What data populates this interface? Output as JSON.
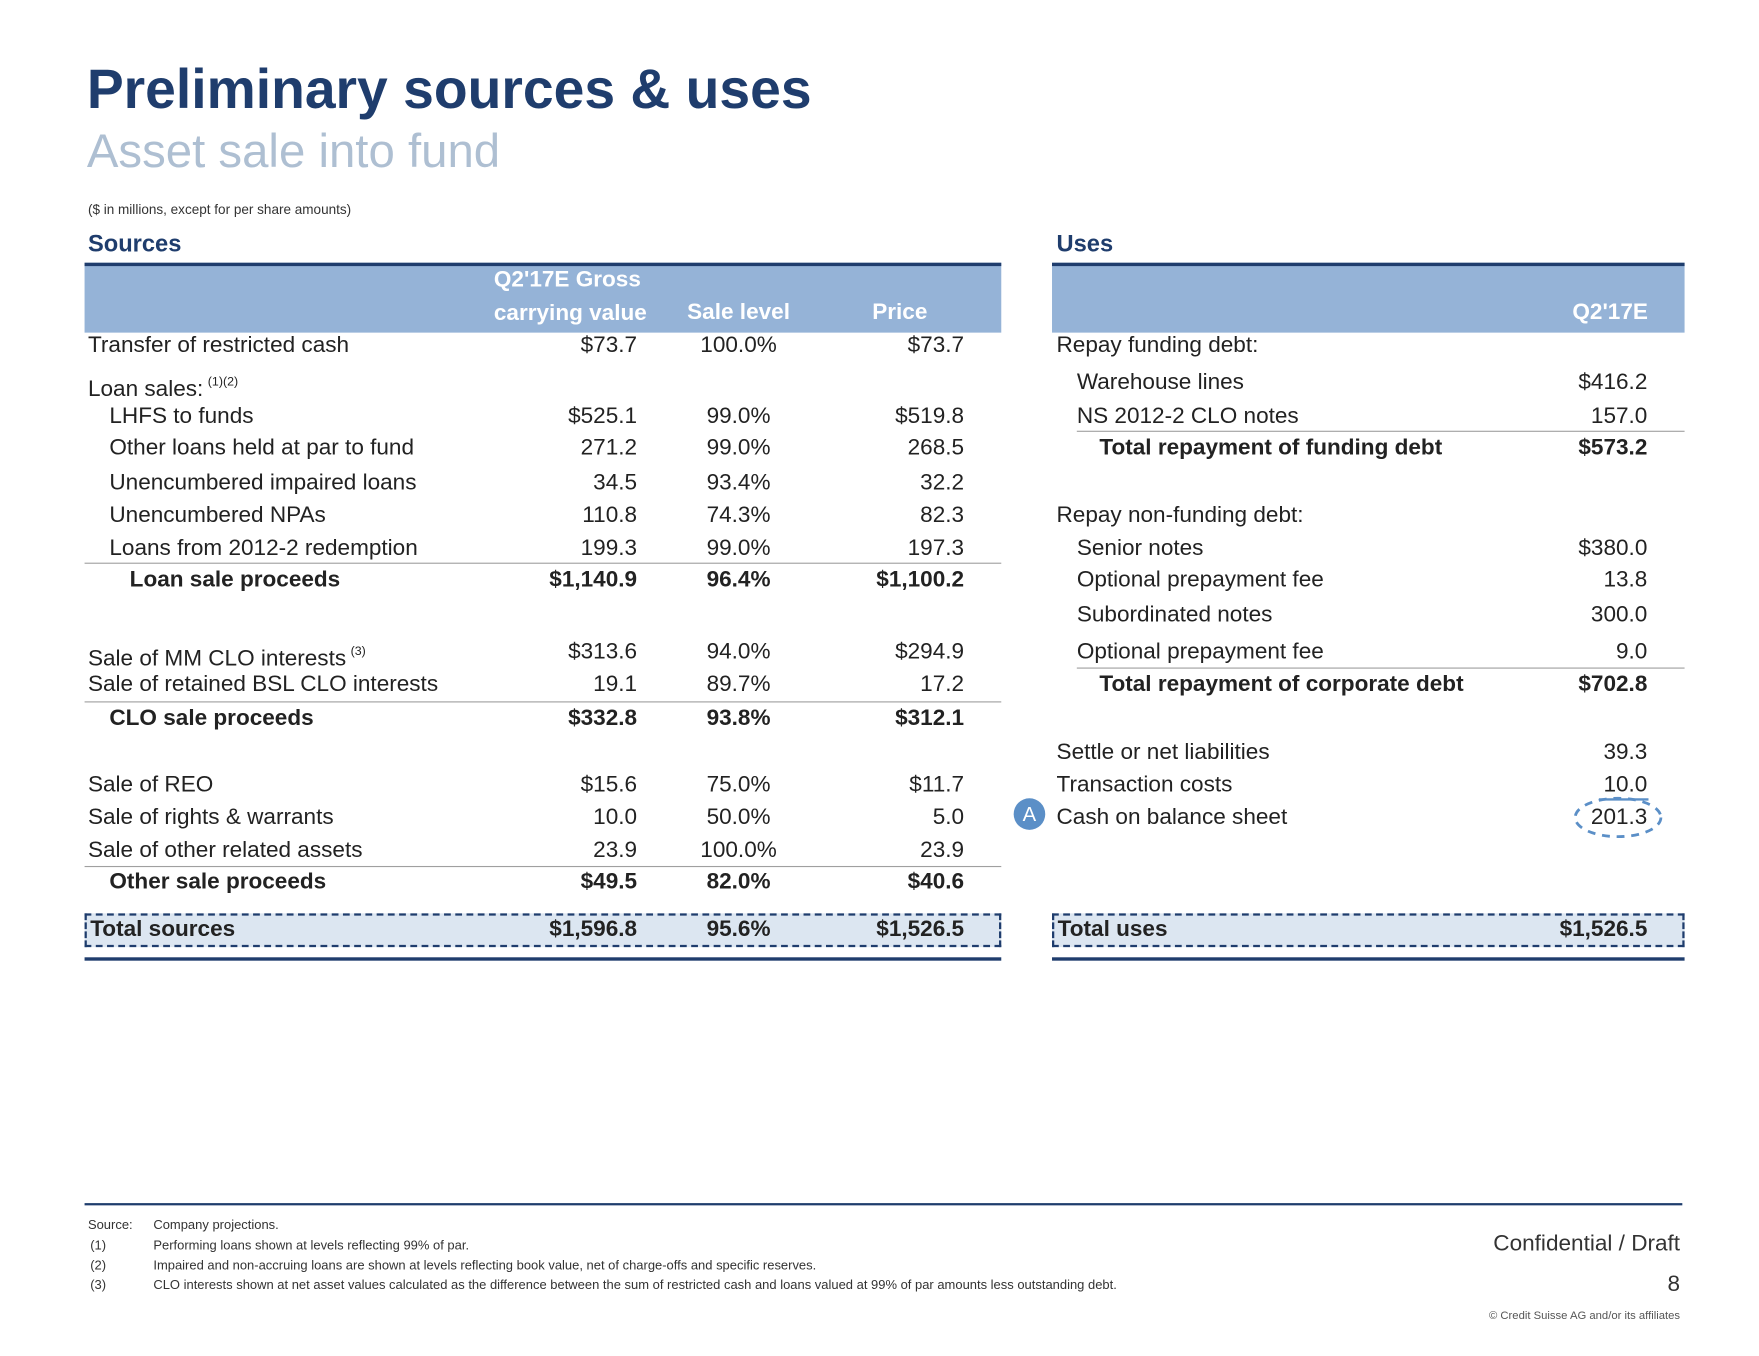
{
  "header": {
    "title": "Preliminary sources & uses",
    "subtitle": "Asset sale into fund",
    "units_note": "($ in millions, except for per share amounts)"
  },
  "sources": {
    "heading": "Sources",
    "columns": [
      "Q2'17E Gross carrying value",
      "Sale level",
      "Price"
    ],
    "rows": [
      {
        "label": "Transfer of restricted cash",
        "values": [
          "$73.7",
          "100.0%",
          "$73.7"
        ]
      },
      {
        "label": "Loan sales:",
        "note": "(1)(2)"
      },
      {
        "label": "LHFS to funds",
        "values": [
          "$525.1",
          "99.0%",
          "$519.8"
        ]
      },
      {
        "label": "Other loans held at par to fund",
        "values": [
          "271.2",
          "99.0%",
          "268.5"
        ]
      },
      {
        "label": "Unencumbered impaired loans",
        "values": [
          "34.5",
          "93.4%",
          "32.2"
        ]
      },
      {
        "label": "Unencumbered NPAs",
        "values": [
          "110.8",
          "74.3%",
          "82.3"
        ]
      },
      {
        "label": "Loans from 2012-2 redemption",
        "values": [
          "199.3",
          "99.0%",
          "197.3"
        ]
      },
      {
        "label": "Loan sale proceeds",
        "values": [
          "$1,140.9",
          "96.4%",
          "$1,100.2"
        ]
      },
      {
        "label": "Sale of MM CLO interests",
        "note": "(3)",
        "values": [
          "$313.6",
          "94.0%",
          "$294.9"
        ]
      },
      {
        "label": "Sale of retained BSL CLO interests",
        "values": [
          "19.1",
          "89.7%",
          "17.2"
        ]
      },
      {
        "label": "CLO sale proceeds",
        "values": [
          "$332.8",
          "93.8%",
          "$312.1"
        ]
      },
      {
        "label": "Sale of REO",
        "values": [
          "$15.6",
          "75.0%",
          "$11.7"
        ]
      },
      {
        "label": "Sale of rights & warrants",
        "values": [
          "10.0",
          "50.0%",
          "5.0"
        ]
      },
      {
        "label": "Sale of other related assets",
        "values": [
          "23.9",
          "100.0%",
          "23.9"
        ]
      },
      {
        "label": "Other sale proceeds",
        "values": [
          "$49.5",
          "82.0%",
          "$40.6"
        ]
      }
    ],
    "total": {
      "label": "Total sources",
      "values": [
        "$1,596.8",
        "95.6%",
        "$1,526.5"
      ]
    }
  },
  "uses": {
    "heading": "Uses",
    "column": "Q2'17E",
    "rows": [
      {
        "label": "Repay funding debt:"
      },
      {
        "label": "Warehouse lines",
        "value": "$416.2"
      },
      {
        "label": "NS 2012-2 CLO notes",
        "value": "157.0"
      },
      {
        "label": "Total repayment of funding debt",
        "value": "$573.2"
      },
      {
        "label": "Repay non-funding debt:"
      },
      {
        "label": "Senior notes",
        "value": "$380.0"
      },
      {
        "label": "Optional prepayment fee",
        "value": "13.8"
      },
      {
        "label": "Subordinated notes",
        "value": "300.0"
      },
      {
        "label": "Optional prepayment fee",
        "value": "9.0"
      },
      {
        "label": "Total repayment of corporate debt",
        "value": "$702.8"
      },
      {
        "label": "Settle or net liabilities",
        "value": "39.3"
      },
      {
        "label": "Transaction costs",
        "value": "10.0"
      },
      {
        "label": "Cash on balance sheet",
        "value": "201.3",
        "marker": "A"
      }
    ],
    "total": {
      "label": "Total uses",
      "value": "$1,526.5"
    }
  },
  "footer": {
    "source_label": "Source:",
    "source": "Company projections.",
    "notes": [
      {
        "mark": "(1)",
        "text": "Performing loans shown at levels reflecting 99% of par."
      },
      {
        "mark": "(2)",
        "text": "Impaired and non-accruing loans are shown at levels reflecting book value, net of charge-offs and specific reserves."
      },
      {
        "mark": "(3)",
        "text": "CLO interests shown at net asset values calculated as the difference between the sum of restricted cash and loans valued at 99% of par amounts less outstanding debt."
      }
    ],
    "status": "Confidential / Draft",
    "page": "8",
    "copyright": "© Credit Suisse AG and/or its affiliates"
  }
}
